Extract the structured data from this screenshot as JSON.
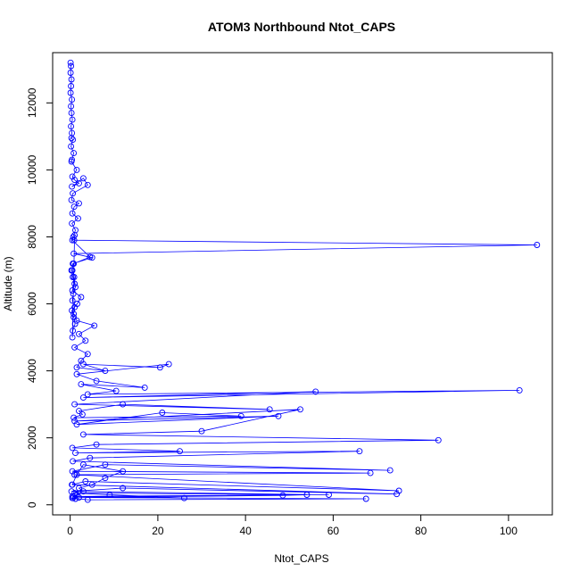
{
  "chart_data": {
    "type": "line",
    "title": "ATOM3 Northbound Ntot_CAPS",
    "xlabel": "Ntot_CAPS",
    "ylabel": "Altitude (m)",
    "xlim": [
      -4,
      110
    ],
    "ylim": [
      -300,
      13500
    ],
    "xticks": [
      0,
      20,
      40,
      60,
      80,
      100
    ],
    "yticks": [
      0,
      2000,
      4000,
      6000,
      8000,
      10000,
      12000
    ],
    "grid": false,
    "markers": "open-circle",
    "line_color": "#0000ff",
    "series": [
      {
        "x": [
          0.1,
          0.2,
          0.1,
          0.3,
          0.2,
          0.1,
          0.4,
          0.2,
          0.3,
          0.5,
          0.2,
          0.4,
          0.3,
          0.6,
          0.2,
          0.8,
          0.4,
          0.3,
          1.5,
          0.5,
          1.0,
          2.0,
          0.4,
          3.0,
          4.0,
          0.6,
          0.3,
          2.0,
          0.9,
          0.5,
          1.8,
          0.4,
          1.2,
          0.7,
          0.5,
          4.5,
          0.8,
          0.3,
          0.6,
          1.0,
          0.5,
          2.5,
          1.6,
          0.4,
          0.8,
          1.1,
          0.6,
          0.5,
          1.0,
          0.9,
          106.5,
          0.8,
          5.0,
          0.6,
          0.5,
          0.9,
          1.2,
          0.7,
          0.5,
          1.0,
          0.8,
          1.5,
          5.5,
          2.0,
          3.5,
          1.0,
          4.0,
          2.5,
          1.5,
          8.0,
          3.0,
          20.5,
          22.5,
          1.5,
          6.0,
          17.0,
          2.5,
          10.5,
          4.0,
          102.5,
          3.0,
          56.0,
          1.0,
          45.5,
          12.0,
          2.0,
          2.8,
          0.8,
          39.0,
          21.0,
          1.5,
          47.5,
          1.0,
          52.5,
          30.0,
          3.0,
          84.0,
          6.0,
          0.5,
          25.0,
          1.2,
          66.0,
          4.5,
          0.6,
          73.0,
          8.0,
          0.5,
          68.5,
          1.0,
          75.0,
          3.5,
          0.4,
          74.5,
          12.0,
          0.3,
          59.0,
          1.0,
          9.0,
          26.0,
          0.5,
          54.0,
          48.5,
          2.0,
          67.5,
          4.0,
          0.6,
          1.2,
          0.8,
          0.5,
          1.5,
          3.0,
          2.0,
          5.0,
          8.0,
          12.0,
          3.0,
          1.5,
          0.5
        ],
        "y": [
          13200,
          13100,
          12900,
          12700,
          12500,
          12300,
          12100,
          11900,
          11700,
          11500,
          11300,
          11100,
          10950,
          10900,
          10700,
          10500,
          10300,
          10250,
          10000,
          9800,
          9700,
          9600,
          9500,
          9750,
          9550,
          9300,
          9100,
          9000,
          8900,
          8700,
          8550,
          8400,
          8200,
          8000,
          7900,
          7400,
          7200,
          7000,
          6800,
          6600,
          6400,
          6200,
          6000,
          5800,
          5600,
          5400,
          5200,
          5000,
          8050,
          7900,
          7760,
          7500,
          7380,
          7200,
          7000,
          6800,
          6500,
          6300,
          6100,
          5900,
          5700,
          5500,
          5350,
          5100,
          4900,
          4700,
          4500,
          4300,
          4100,
          4000,
          4200,
          4100,
          4200,
          3900,
          3700,
          3500,
          3600,
          3400,
          3300,
          3420,
          3200,
          3380,
          3000,
          2850,
          3000,
          2800,
          2700,
          2600,
          2650,
          2750,
          2400,
          2650,
          2500,
          2850,
          2200,
          2100,
          1930,
          1800,
          1700,
          1600,
          1550,
          1600,
          1400,
          1300,
          1030,
          1200,
          1000,
          950,
          900,
          420,
          700,
          600,
          320,
          500,
          400,
          300,
          350,
          300,
          200,
          250,
          300,
          280,
          220,
          180,
          150,
          200,
          180,
          250,
          200,
          300,
          400,
          500,
          600,
          800,
          1000,
          1200,
          900,
          600
        ]
      }
    ]
  }
}
